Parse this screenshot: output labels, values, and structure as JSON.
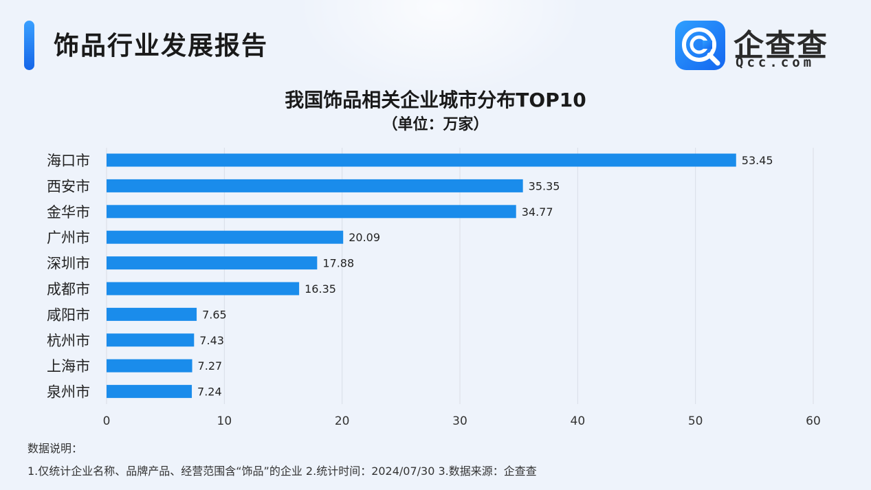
{
  "header": {
    "title": "饰品行业发展报告"
  },
  "logo": {
    "cn": "企查查",
    "en": "Qcc.com"
  },
  "colors": {
    "bar": "#1a8ceb",
    "accent": "#1565e8",
    "grid": "#d9dde6"
  },
  "chart_data": {
    "type": "bar",
    "orientation": "horizontal",
    "title": "我国饰品相关企业城市分布TOP10",
    "subtitle": "（单位：万家）",
    "categories": [
      "海口市",
      "西安市",
      "金华市",
      "广州市",
      "深圳市",
      "成都市",
      "咸阳市",
      "杭州市",
      "上海市",
      "泉州市"
    ],
    "values": [
      53.45,
      35.35,
      34.77,
      20.09,
      17.88,
      16.35,
      7.65,
      7.43,
      7.27,
      7.24
    ],
    "value_labels": [
      "53.45",
      "35.35",
      "34.77",
      "20.09",
      "17.88",
      "16.35",
      "7.65",
      "7.43",
      "7.27",
      "7.24"
    ],
    "xlim": [
      0,
      60
    ],
    "xticks": [
      "0",
      "10",
      "20",
      "30",
      "40",
      "50",
      "60"
    ],
    "grid": true
  },
  "notes": {
    "heading": "数据说明：",
    "line": "1.仅统计企业名称、品牌产品、经营范围含“饰品”的企业   2.统计时间：2024/07/30    3.数据来源：企查查"
  }
}
